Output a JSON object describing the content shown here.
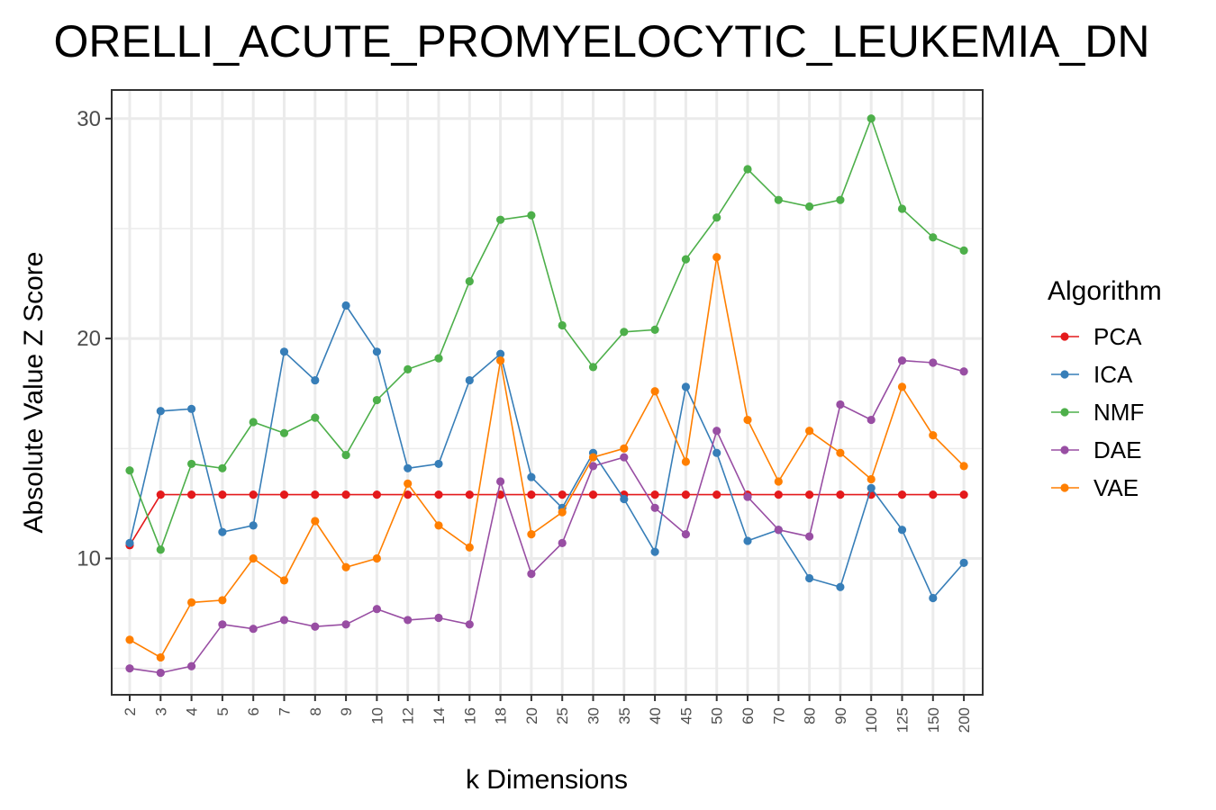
{
  "chart_data": {
    "type": "line",
    "title": "ORELLI_ACUTE_PROMYELOCYTIC_LEUKEMIA_DN",
    "xlabel": "k Dimensions",
    "ylabel": "Absolute Value Z Score",
    "ylim": [
      3.8,
      31.3
    ],
    "yticks": [
      10,
      20,
      30
    ],
    "grid": true,
    "legend_position": "right",
    "legend_title": "Algorithm",
    "categories": [
      "2",
      "3",
      "4",
      "5",
      "6",
      "7",
      "8",
      "9",
      "10",
      "12",
      "14",
      "16",
      "18",
      "20",
      "25",
      "30",
      "35",
      "40",
      "45",
      "50",
      "60",
      "70",
      "80",
      "90",
      "100",
      "125",
      "150",
      "200"
    ],
    "series": [
      {
        "name": "PCA",
        "color": "#e41a1c",
        "values": [
          10.6,
          12.9,
          12.9,
          12.9,
          12.9,
          12.9,
          12.9,
          12.9,
          12.9,
          12.9,
          12.9,
          12.9,
          12.9,
          12.9,
          12.9,
          12.9,
          12.9,
          12.9,
          12.9,
          12.9,
          12.9,
          12.9,
          12.9,
          12.9,
          12.9,
          12.9,
          12.9,
          12.9
        ]
      },
      {
        "name": "ICA",
        "color": "#377eb8",
        "values": [
          10.7,
          16.7,
          16.8,
          11.2,
          11.5,
          19.4,
          18.1,
          21.5,
          19.4,
          14.1,
          14.3,
          18.1,
          19.3,
          13.7,
          12.3,
          14.8,
          12.7,
          10.3,
          17.8,
          14.8,
          10.8,
          11.3,
          9.1,
          8.7,
          13.2,
          11.3,
          8.2,
          9.8
        ]
      },
      {
        "name": "NMF",
        "color": "#4daf4a",
        "values": [
          14.0,
          10.4,
          14.3,
          14.1,
          16.2,
          15.7,
          16.4,
          14.7,
          17.2,
          18.6,
          19.1,
          22.6,
          25.4,
          25.6,
          20.6,
          18.7,
          20.3,
          20.4,
          23.6,
          25.5,
          27.7,
          26.3,
          26.0,
          26.3,
          30.0,
          25.9,
          24.6,
          24.0
        ]
      },
      {
        "name": "DAE",
        "color": "#984ea3",
        "values": [
          5.0,
          4.8,
          5.1,
          7.0,
          6.8,
          7.2,
          6.9,
          7.0,
          7.7,
          7.2,
          7.3,
          7.0,
          13.5,
          9.3,
          10.7,
          14.2,
          14.6,
          12.3,
          11.1,
          15.8,
          12.8,
          11.3,
          11.0,
          17.0,
          16.3,
          19.0,
          18.9,
          18.5
        ]
      },
      {
        "name": "VAE",
        "color": "#ff7f00",
        "values": [
          6.3,
          5.5,
          8.0,
          8.1,
          10.0,
          9.0,
          11.7,
          9.6,
          10.0,
          13.4,
          11.5,
          10.5,
          19.0,
          11.1,
          12.1,
          14.6,
          15.0,
          17.6,
          14.4,
          23.7,
          16.3,
          13.5,
          15.8,
          14.8,
          13.6,
          17.8,
          15.6,
          14.2
        ]
      }
    ]
  }
}
